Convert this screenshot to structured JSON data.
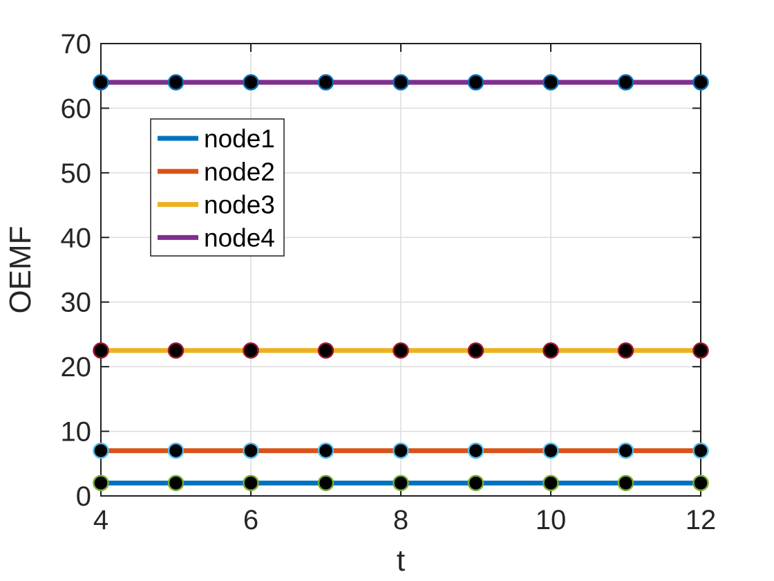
{
  "figure": {
    "background": "#ffffff"
  },
  "chart_data": {
    "type": "line",
    "title": "",
    "xlabel": "t",
    "ylabel": "OEMF",
    "x": [
      4,
      5,
      6,
      7,
      8,
      9,
      10,
      11,
      12
    ],
    "series": [
      {
        "name": "node1",
        "color": "#0072BD",
        "marker_edge": "#77AC30",
        "values": [
          2,
          2,
          2,
          2,
          2,
          2,
          2,
          2,
          2
        ]
      },
      {
        "name": "node2",
        "color": "#D95319",
        "marker_edge": "#4DBEEE",
        "values": [
          7,
          7,
          7,
          7,
          7,
          7,
          7,
          7,
          7
        ]
      },
      {
        "name": "node3",
        "color": "#EDB120",
        "marker_edge": "#A2142F",
        "values": [
          22.5,
          22.5,
          22.5,
          22.5,
          22.5,
          22.5,
          22.5,
          22.5,
          22.5
        ]
      },
      {
        "name": "node4",
        "color": "#7E2F8E",
        "marker_edge": "#0072BD",
        "values": [
          64,
          64,
          64,
          64,
          64,
          64,
          64,
          64,
          64
        ]
      }
    ],
    "xlim": [
      4,
      12
    ],
    "ylim": [
      0,
      70
    ],
    "xticks": [
      4,
      6,
      8,
      10,
      12
    ],
    "yticks": [
      0,
      10,
      20,
      30,
      40,
      50,
      60,
      70
    ],
    "grid": true,
    "legend": {
      "position": "upper-left-inside",
      "entries": [
        "node1",
        "node2",
        "node3",
        "node4"
      ]
    },
    "marker": "o",
    "marker_fill": "#000000",
    "axis_color": "#1f1f1f",
    "grid_color": "#dcdcdc",
    "tick_label_color": "#262626"
  }
}
